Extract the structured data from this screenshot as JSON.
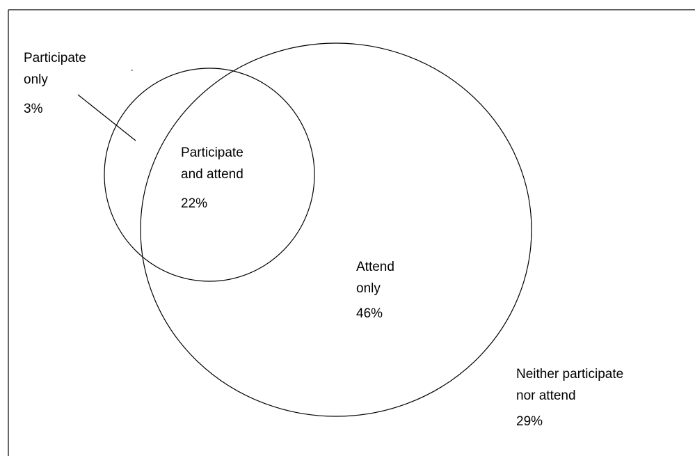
{
  "regions": {
    "participate_only": {
      "line1": "Participate",
      "line2": "only",
      "pct": "3%"
    },
    "participate_and_attend": {
      "line1": "Participate",
      "line2": "and attend",
      "pct": "22%"
    },
    "attend_only": {
      "line1": "Attend",
      "line2": "only",
      "pct": "46%"
    },
    "neither": {
      "line1": "Neither participate",
      "line2": "nor attend",
      "pct": "29%"
    }
  },
  "colors": {
    "stroke": "#000000",
    "background": "#ffffff"
  }
}
